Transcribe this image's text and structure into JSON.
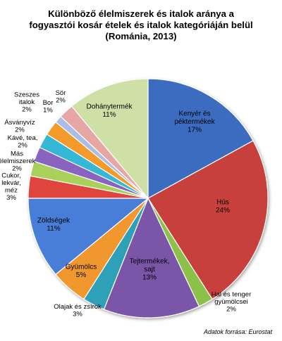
{
  "title_lines": [
    "Különböző élelmiszerek és italok aránya a",
    "fogyasztói kosár ételek és italok kategóriáján belül",
    "(Románia, 2013)"
  ],
  "source": "Adatok forrása: Eurostat",
  "chart_data": {
    "type": "pie",
    "title": "Különböző élelmiszerek és italok aránya a fogyasztói kosár ételek és italok kategóriáján belül (Románia, 2013)",
    "unit": "%",
    "slices": [
      {
        "label": "Kenyér és péktermékek",
        "lines": [
          "Kenyér és",
          "péktermékek"
        ],
        "value": 17,
        "display": "17%",
        "color": "#3a6cc0",
        "inside": true
      },
      {
        "label": "Hús",
        "lines": [
          "Hús"
        ],
        "value": 24,
        "display": "24%",
        "color": "#c8403a",
        "inside": true
      },
      {
        "label": "Hal és tenger gyümölcsei",
        "lines": [
          "Hal és tenger",
          "gyümölcsei"
        ],
        "value": 2,
        "display": "2%",
        "color": "#8cc04a",
        "inside": false
      },
      {
        "label": "Tejtermékek, sajt",
        "lines": [
          "Tejtermékek,",
          "sajt"
        ],
        "value": 13,
        "display": "13%",
        "color": "#7a55a8",
        "inside": true
      },
      {
        "label": "Olajak és zsírok",
        "lines": [
          "Olajak és zsírok"
        ],
        "value": 3,
        "display": "3%",
        "color": "#2ea0b8",
        "inside": false
      },
      {
        "label": "Gyümölcs",
        "lines": [
          "Gyümölcs"
        ],
        "value": 5,
        "display": "5%",
        "color": "#f0972e",
        "inside": true
      },
      {
        "label": "Zöldségek",
        "lines": [
          "Zöldségek"
        ],
        "value": 11,
        "display": "11%",
        "color": "#4a7ed8",
        "inside": true
      },
      {
        "label": "Cukor, lekvár, méz",
        "lines": [
          "Cukor,",
          "lekvár,",
          "méz"
        ],
        "value": 3,
        "display": "3%",
        "color": "#e0443c",
        "inside": false
      },
      {
        "label": "Más élelmiszerek",
        "lines": [
          "Más",
          "élelmiszerek"
        ],
        "value": 2,
        "display": "2%",
        "color": "#a8d05a",
        "inside": false
      },
      {
        "label": "Kávé, tea",
        "lines": [
          "Kávé, tea,"
        ],
        "value": 2,
        "display": "2%",
        "color": "#8a62c0",
        "inside": false
      },
      {
        "label": "Ásványvíz",
        "lines": [
          "Ásványvíz"
        ],
        "value": 2,
        "display": "2%",
        "color": "#34b8d6",
        "inside": false
      },
      {
        "label": "Szeszes italok",
        "lines": [
          "Szeszes",
          "italok"
        ],
        "value": 2,
        "display": "2%",
        "color": "#f39a2c",
        "inside": false
      },
      {
        "label": "Bor",
        "lines": [
          "Bor"
        ],
        "value": 1,
        "display": "1%",
        "color": "#a9bde6",
        "inside": false
      },
      {
        "label": "Sör",
        "lines": [
          "Sör"
        ],
        "value": 2,
        "display": "2%",
        "color": "#e6a6a4",
        "inside": false
      },
      {
        "label": "Dohánytermék",
        "lines": [
          "Dohánytermék"
        ],
        "value": 11,
        "display": "11%",
        "color": "#cfe0a6",
        "inside": true
      }
    ]
  }
}
